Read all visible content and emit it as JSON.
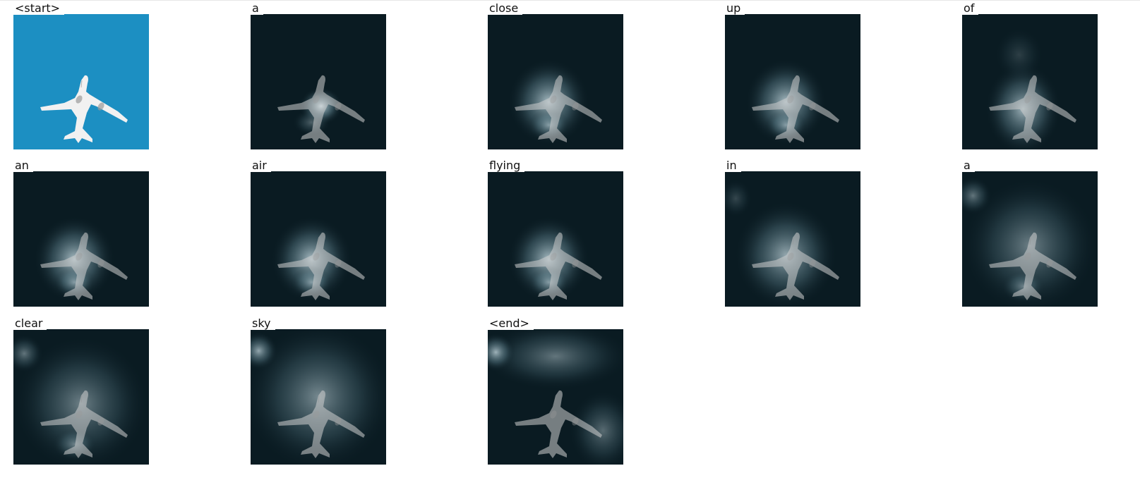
{
  "figure": {
    "kind": "caption-attention-visualization",
    "colors": {
      "original_sky": "#1c8fc2",
      "attention_dark": "#0a1b22",
      "attention_light": "#cfe3ea",
      "plane_tone": "#cfcfcf"
    },
    "tokens": [
      {
        "word": "<start>",
        "kind": "original"
      },
      {
        "word": "a",
        "kind": "attention",
        "focus": "nose"
      },
      {
        "word": "close",
        "kind": "attention",
        "focus": "center"
      },
      {
        "word": "up",
        "kind": "attention",
        "focus": "center"
      },
      {
        "word": "of",
        "kind": "attention",
        "focus": "center-low"
      },
      {
        "word": "an",
        "kind": "attention",
        "focus": "center"
      },
      {
        "word": "air",
        "kind": "attention",
        "focus": "center"
      },
      {
        "word": "flying",
        "kind": "attention",
        "focus": "center"
      },
      {
        "word": "in",
        "kind": "attention",
        "focus": "center-wide"
      },
      {
        "word": "a",
        "kind": "attention",
        "focus": "diffuse"
      },
      {
        "word": "clear",
        "kind": "attention",
        "focus": "diffuse"
      },
      {
        "word": "sky",
        "kind": "attention",
        "focus": "diffuse-top"
      },
      {
        "word": "<end>",
        "kind": "attention",
        "focus": "edges"
      }
    ]
  }
}
